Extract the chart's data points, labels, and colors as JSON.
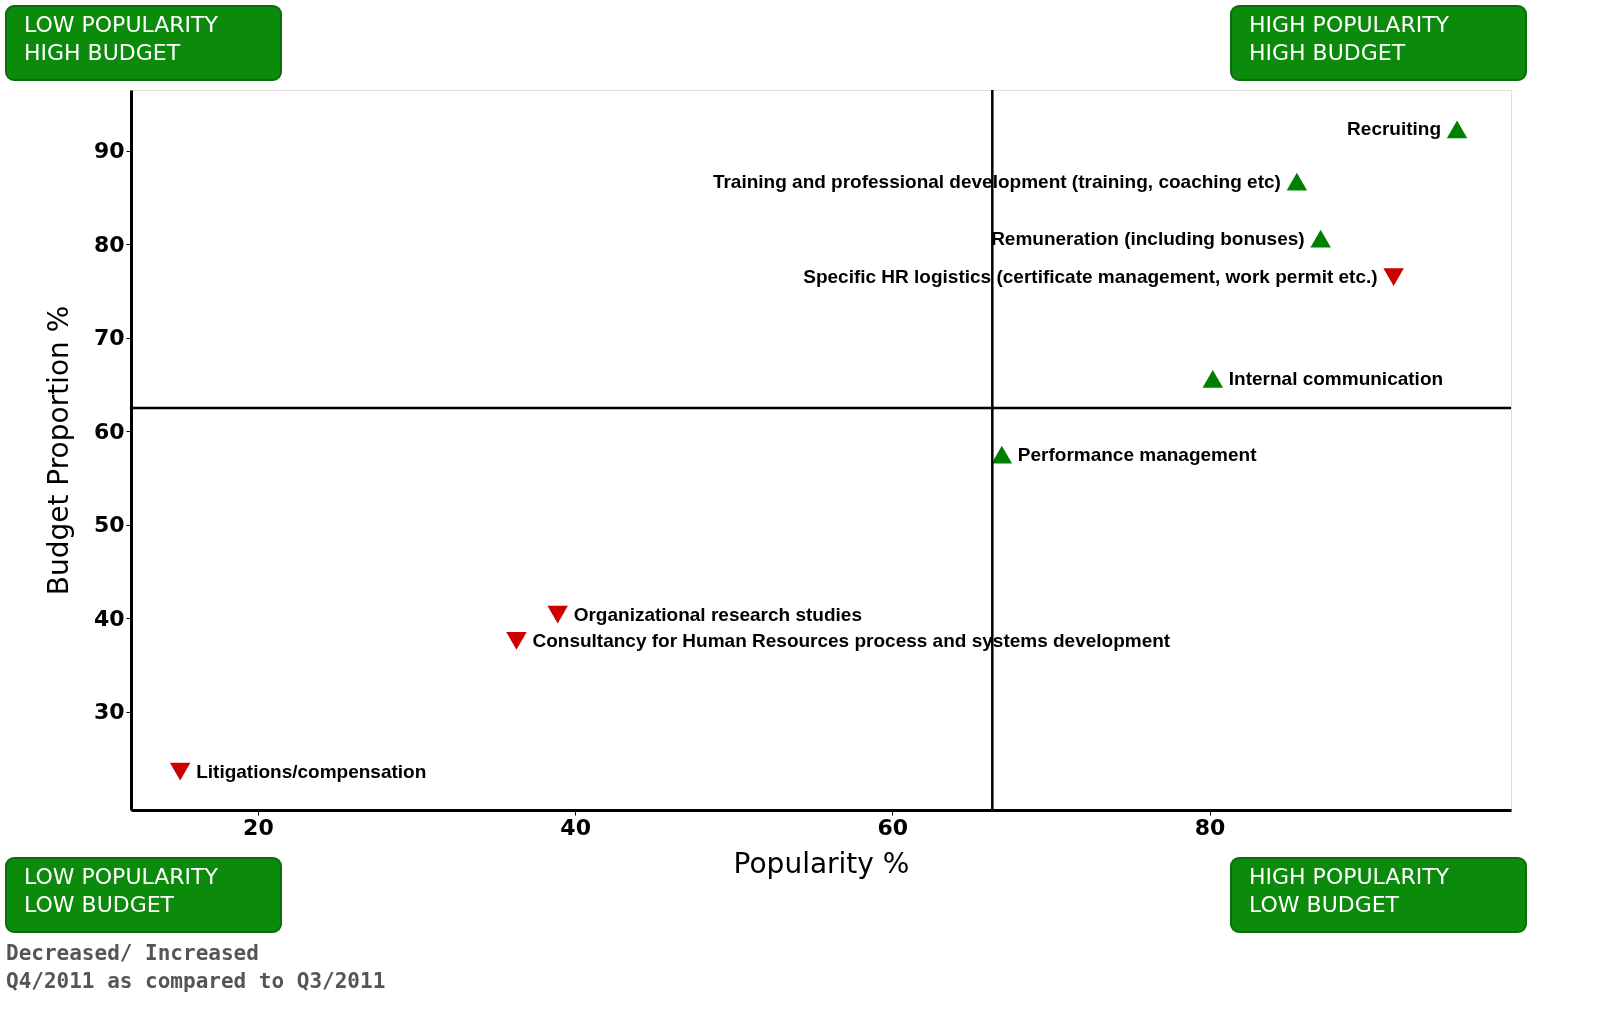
{
  "chart_data": {
    "type": "scatter",
    "xlabel": "Popularity %",
    "ylabel": "Budget Proportion %",
    "xlim": [
      12,
      99
    ],
    "ylim": [
      19.5,
      96.5
    ],
    "xticks": [
      20,
      40,
      60,
      80
    ],
    "yticks": [
      30,
      40,
      50,
      60,
      70,
      80,
      90
    ],
    "grid": false,
    "legend": false,
    "series": [
      {
        "color": "#008000",
        "marker": "triangle-up",
        "x": [
          95.6,
          85.5,
          87.0,
          80.2,
          66.9
        ],
        "values": [
          92.3,
          86.7,
          80.6,
          65.6,
          57.5
        ]
      },
      {
        "color": "#cc0000",
        "marker": "triangle-down",
        "x": [
          91.6,
          38.9,
          36.3,
          15.1
        ],
        "values": [
          76.5,
          40.4,
          37.6,
          23.6
        ]
      }
    ],
    "ref_lines": [
      {
        "axis": "x",
        "value": 66.3,
        "color": "#000000"
      },
      {
        "axis": "y",
        "value": 62.5,
        "color": "#000000"
      }
    ],
    "annotations": [
      {
        "text": "Recruiting",
        "x": 95.6,
        "y": 92.3
      },
      {
        "text": "Training and professional development (training, coaching etc)",
        "x": 85.5,
        "y": 86.7
      },
      {
        "text": "Remuneration (including bonuses)",
        "x": 87.0,
        "y": 80.6
      },
      {
        "text": "Specific HR logistics (certificate management, work permit etc.)",
        "x": 91.6,
        "y": 76.5
      },
      {
        "text": "Internal communication",
        "x": 80.2,
        "y": 65.6
      },
      {
        "text": "Performance management",
        "x": 66.9,
        "y": 57.5
      },
      {
        "text": "Organizational research studies",
        "x": 38.9,
        "y": 40.4
      },
      {
        "text": "Consultancy for Human Resources process and systems development",
        "x": 36.3,
        "y": 37.6
      },
      {
        "text": "Litigations/compensation",
        "x": 15.1,
        "y": 23.6
      },
      "LOW POPULARITY\nHIGH BUDGET",
      "HIGH POPULARITY\nHIGH BUDGET",
      "LOW POPULARITY\nLOW BUDGET",
      "HIGH POPULARITY\nLOW BUDGET",
      "Decreased/ Increased",
      "Q4/2011 as compared to Q3/2011"
    ]
  }
}
